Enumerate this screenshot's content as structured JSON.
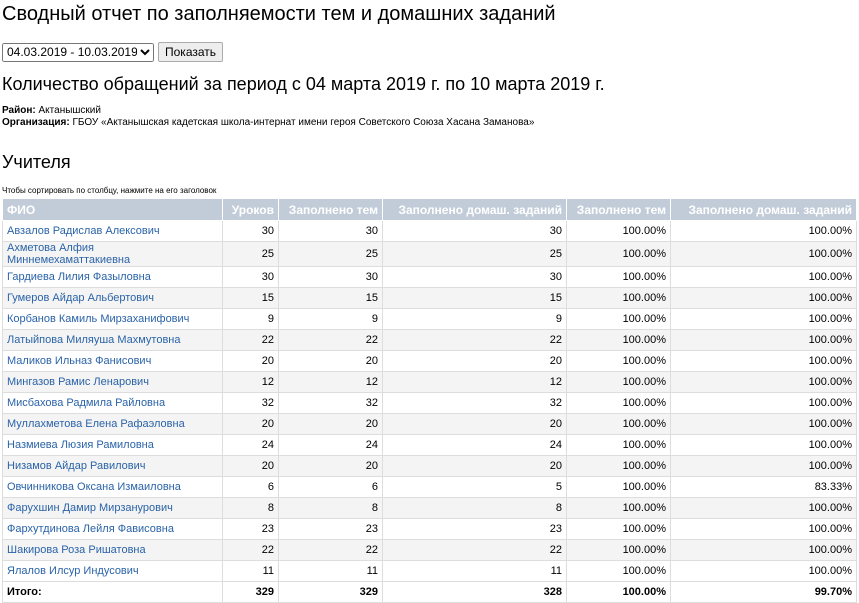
{
  "title": "Сводный отчет по заполняемости тем и домашних заданий",
  "filter": {
    "period": "04.03.2019 - 10.03.2019",
    "show_label": "Показать"
  },
  "subtitle": "Количество обращений за период с 04 марта 2019 г. по 10 марта 2019 г.",
  "info": {
    "district_label": "Район:",
    "district": "Актанышский",
    "org_label": "Организация:",
    "org": "ГБОУ «Актанышская кадетская школа-интернат имени героя Советского Союза Хасана Заманова»"
  },
  "section": "Учителя",
  "hint": "Чтобы сортировать по столбцу, нажмите на его заголовок",
  "columns": [
    "ФИО",
    "Уроков",
    "Заполнено тем",
    "Заполнено домаш. заданий",
    "Заполнено тем",
    "Заполнено домаш. заданий"
  ],
  "rows": [
    [
      "Авзалов Радислав Алексович",
      "30",
      "30",
      "30",
      "100.00%",
      "100.00%"
    ],
    [
      "Ахметова Алфия Миннемехаматтакиевна",
      "25",
      "25",
      "25",
      "100.00%",
      "100.00%"
    ],
    [
      "Гардиева Лилия Фазыловна",
      "30",
      "30",
      "30",
      "100.00%",
      "100.00%"
    ],
    [
      "Гумеров Айдар Альбертович",
      "15",
      "15",
      "15",
      "100.00%",
      "100.00%"
    ],
    [
      "Корбанов Камиль Мирзаханифович",
      "9",
      "9",
      "9",
      "100.00%",
      "100.00%"
    ],
    [
      "Латыйпова Миляуша Махмутовна",
      "22",
      "22",
      "22",
      "100.00%",
      "100.00%"
    ],
    [
      "Маликов Ильназ Фанисович",
      "20",
      "20",
      "20",
      "100.00%",
      "100.00%"
    ],
    [
      "Мингазов Рамис Ленарович",
      "12",
      "12",
      "12",
      "100.00%",
      "100.00%"
    ],
    [
      "Мисбахова Радмила Райловна",
      "32",
      "32",
      "32",
      "100.00%",
      "100.00%"
    ],
    [
      "Муллахметова Елена Рафаэловна",
      "20",
      "20",
      "20",
      "100.00%",
      "100.00%"
    ],
    [
      "Назмиева Люзия Рамиловна",
      "24",
      "24",
      "24",
      "100.00%",
      "100.00%"
    ],
    [
      "Низамов Айдар Равилович",
      "20",
      "20",
      "20",
      "100.00%",
      "100.00%"
    ],
    [
      "Овчинникова Оксана Измаиловна",
      "6",
      "6",
      "5",
      "100.00%",
      "83.33%"
    ],
    [
      "Фарухшин Дамир Мирзанурович",
      "8",
      "8",
      "8",
      "100.00%",
      "100.00%"
    ],
    [
      "Фархутдинова Лейля Фависовна",
      "23",
      "23",
      "23",
      "100.00%",
      "100.00%"
    ],
    [
      "Шакирова Роза Ришатовна",
      "22",
      "22",
      "22",
      "100.00%",
      "100.00%"
    ],
    [
      "Ялалов Илсур Индусович",
      "11",
      "11",
      "11",
      "100.00%",
      "100.00%"
    ]
  ],
  "total": [
    "Итого:",
    "329",
    "329",
    "328",
    "100.00%",
    "99.70%"
  ]
}
